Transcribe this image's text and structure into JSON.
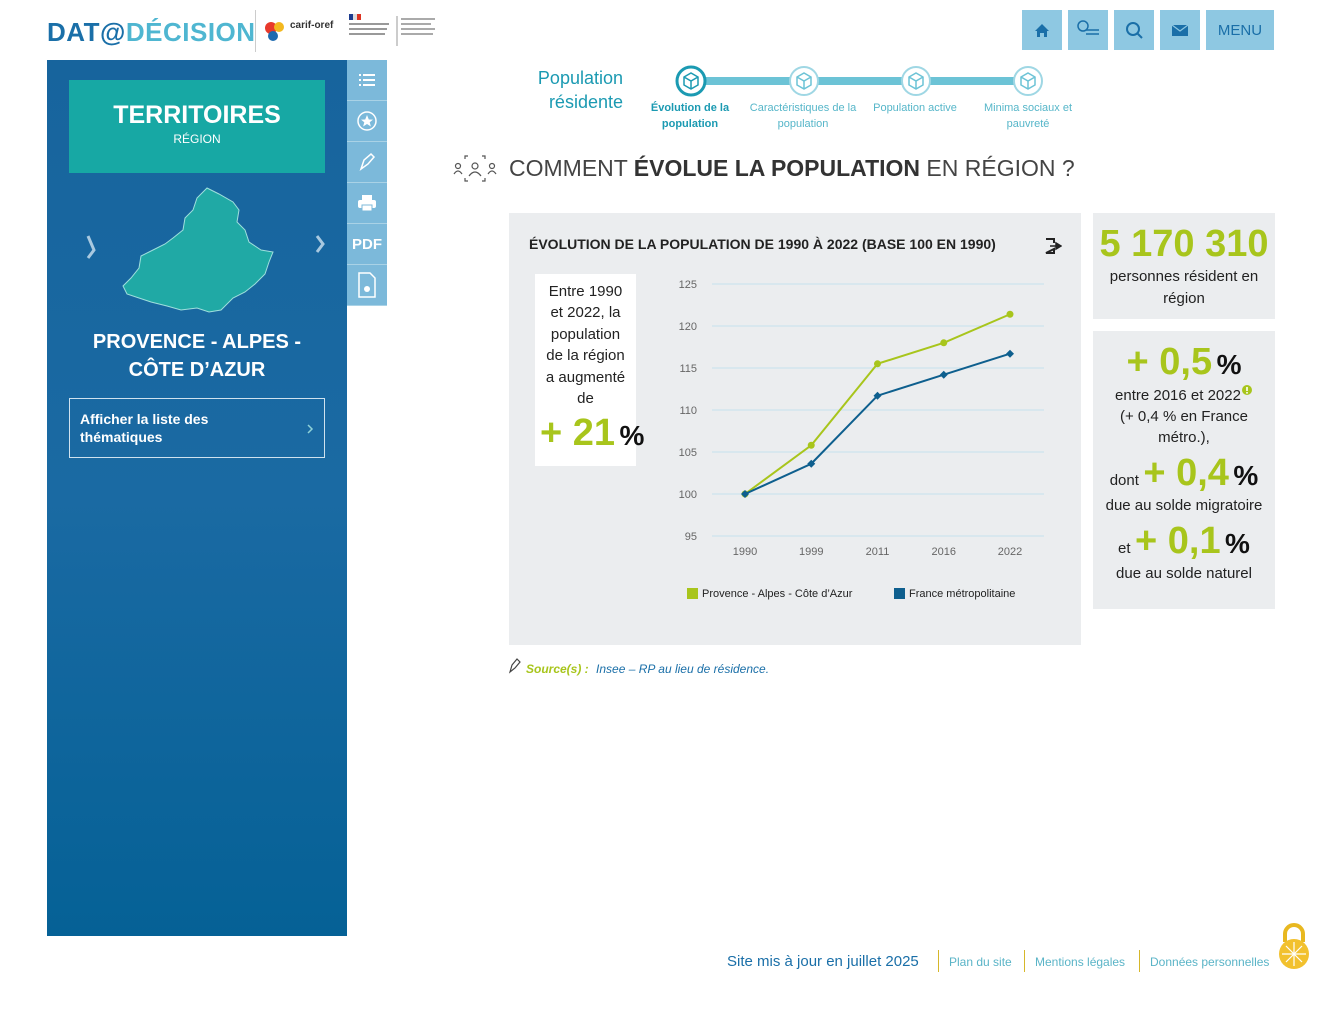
{
  "header": {
    "logo_prefix": "DAT@",
    "logo_suffix": "DÉCISION",
    "partner_logo": "carif-oref",
    "menu": "MENU"
  },
  "sidebar": {
    "title": "TERRITOIRES",
    "subtitle": "RÉGION",
    "territory": "PROVENCE - ALPES - CÔTE D’AZUR",
    "themes_button": "Afficher la liste des thématiques",
    "pdf": "PDF"
  },
  "steps": {
    "section": "Population résidente",
    "items": [
      "Évolution de la population",
      "Caractéristiques de la population",
      "Population active",
      "Minima sociaux et pauvreté"
    ]
  },
  "heading": {
    "before": "COMMENT",
    "emphasis": "ÉVOLUE LA POPULATION",
    "after": "EN RÉGION ?"
  },
  "note": {
    "text": "Entre 1990 et 2022, la population de la région a augmenté de",
    "value": "+ 21",
    "unit": "%"
  },
  "chart_data": {
    "type": "line",
    "title": "ÉVOLUTION DE LA POPULATION DE 1990 À 2022 (BASE 100 EN 1990)",
    "categories": [
      "1990",
      "1999",
      "2011",
      "2016",
      "2022"
    ],
    "series": [
      {
        "name": "Provence - Alpes - Côte d’Azur",
        "color": "#a8c51c",
        "marker": "circle",
        "values": [
          100,
          105.8,
          115.5,
          118,
          121.4
        ]
      },
      {
        "name": "France métropolitaine",
        "color": "#0e5f8e",
        "marker": "diamond",
        "values": [
          100,
          103.6,
          111.7,
          114.2,
          116.7
        ]
      }
    ],
    "ylim": [
      95,
      125
    ],
    "yticks": [
      95,
      100,
      105,
      110,
      115,
      120,
      125
    ],
    "grid": true,
    "legend": "bottom"
  },
  "stats": {
    "total": "5 170 310",
    "total_label": "personnes résident en région",
    "growth": "+ 0,5",
    "growth_unit": "%",
    "period": "entre 2016 et 2022",
    "comparison": "(+ 0,4 % en France métro.),",
    "migratory_prefix": "dont",
    "migratory": "+ 0,4",
    "migratory_unit": "%",
    "migratory_label": "due au solde migratoire",
    "natural_prefix": "et",
    "natural": "+ 0,1",
    "natural_unit": "%",
    "natural_label": "due au solde naturel"
  },
  "source": {
    "label": "Source(s) :",
    "text": "Insee – RP au lieu de résidence."
  },
  "footer": {
    "updated": "Site mis à jour en juillet 2025",
    "links": [
      "Plan du site",
      "Mentions légales",
      "Données personnelles"
    ]
  }
}
